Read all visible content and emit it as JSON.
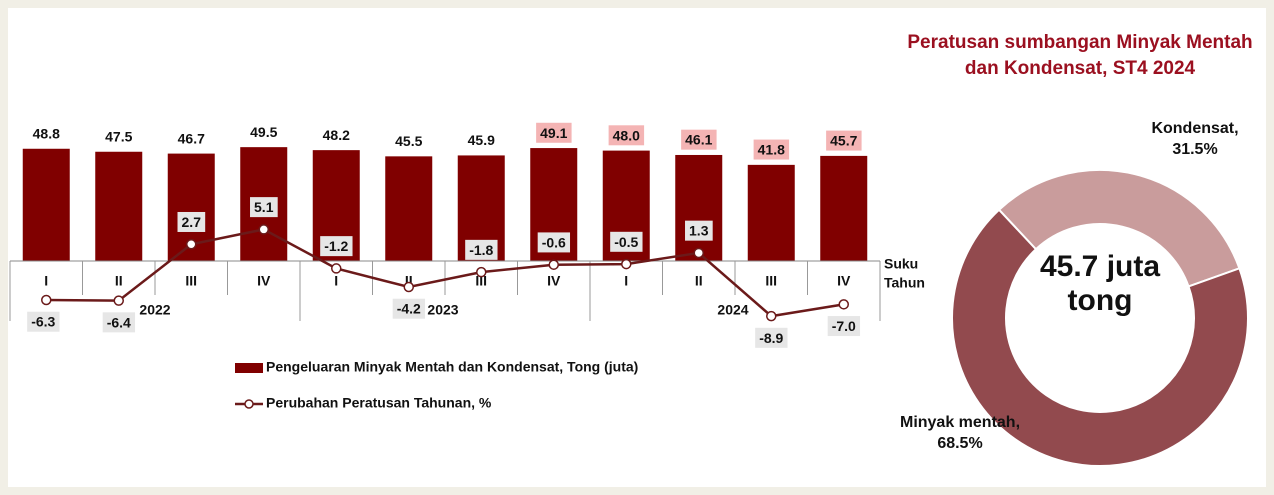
{
  "chart_data": [
    {
      "type": "bar",
      "categories": [
        "I",
        "II",
        "III",
        "IV",
        "I",
        "II",
        "III",
        "IV",
        "I",
        "II",
        "III",
        "IV"
      ],
      "years": [
        "2022",
        "2023",
        "2024"
      ],
      "xlabel": [
        "Suku",
        "Tahun"
      ],
      "ylim": [
        0,
        70
      ],
      "y2lim": [
        -10,
        26
      ],
      "series": [
        {
          "name": "Pengeluaran Minyak Mentah dan Kondensat, Tong (juta)",
          "type": "bar",
          "color": "#800000",
          "values": [
            48.8,
            47.5,
            46.7,
            49.5,
            48.2,
            45.5,
            45.9,
            49.1,
            48.0,
            46.1,
            41.8,
            45.7
          ],
          "value_labels": [
            "48.8",
            "47.5",
            "46.7",
            "49.5",
            "48.2",
            "45.5",
            "45.9",
            "49.1",
            "48.0",
            "46.1",
            "41.8",
            "45.7"
          ],
          "value_label_colors": [
            "none",
            "none",
            "none",
            "none",
            "none",
            "none",
            "none",
            "#f4b4b4",
            "#f4b4b4",
            "#f4b4b4",
            "#f4b4b4",
            "#f4b4b4"
          ]
        },
        {
          "name": "Perubahan Peratusan Tahunan, %",
          "type": "line",
          "axis": "y2",
          "color": "#6b1a1a",
          "values": [
            -6.3,
            -6.4,
            2.7,
            5.1,
            -1.2,
            -4.2,
            -1.8,
            -0.6,
            -0.5,
            1.3,
            -8.9,
            -7.0
          ],
          "value_labels": [
            "-6.3",
            "-6.4",
            "2.7",
            "5.1",
            "-1.2",
            "-4.2",
            "-1.8",
            "-0.6",
            "-0.5",
            "1.3",
            "-8.9",
            "-7.0"
          ],
          "value_label_color": "#e6e6e6"
        }
      ]
    },
    {
      "type": "pie",
      "title": "Peratusan sumbangan Minyak Mentah dan Kondensat, ST4 2024",
      "center_text": "45.7 juta tong",
      "categories": [
        "Kondensat",
        "Minyak mentah"
      ],
      "values": [
        31.5,
        68.5
      ],
      "labels": [
        "Kondensat, 31.5%",
        "Minyak mentah, 68.5%"
      ],
      "colors": [
        "#c99c9c",
        "#924a4e"
      ]
    }
  ]
}
